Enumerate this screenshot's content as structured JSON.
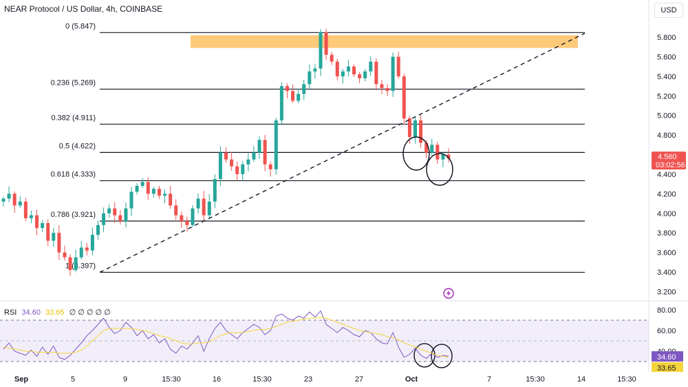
{
  "header": {
    "title": "NEAR Protocol / US Dollar, 4h, COINBASE",
    "currency": "USD"
  },
  "colors": {
    "up": "#26a69a",
    "down": "#ef5350",
    "rsi": "#7e57c2",
    "rsi_ma": "#f5d43b",
    "highlight_zone": "#ffb74d",
    "price_badge": "#ef5350"
  },
  "chart_data": [
    {
      "type": "candlestick",
      "title": "NEAR Protocol / US Dollar, 4h, COINBASE",
      "y_ticks": [
        "5.800",
        "5.600",
        "5.400",
        "5.200",
        "5.000",
        "4.800",
        "4.600",
        "4.400",
        "4.200",
        "4.000",
        "3.800",
        "3.600",
        "3.400",
        "3.200"
      ],
      "x_ticks": [
        "Sep",
        "5",
        "9",
        "15:30",
        "16",
        "15:30",
        "23",
        "27",
        "Oct",
        "7",
        "15:30",
        "14",
        "15:30"
      ],
      "ylim": [
        3.2,
        5.9
      ],
      "last_price": "4.560",
      "countdown": "03:02:56",
      "fib_levels": [
        {
          "label": "0 (5.847)",
          "value": 5.847
        },
        {
          "label": "0.236 (5.269)",
          "value": 5.269
        },
        {
          "label": "0.382 (4.911)",
          "value": 4.911
        },
        {
          "label": "0.5 (4.622)",
          "value": 4.622
        },
        {
          "label": "0.618 (4.333)",
          "value": 4.333
        },
        {
          "label": "0.786 (3.921)",
          "value": 3.921
        },
        {
          "label": "1 (3.397)",
          "value": 3.397
        }
      ],
      "resistance_zone": [
        5.69,
        5.82
      ],
      "trendline": {
        "from": 3.397,
        "to": 5.84
      },
      "price_path": [
        4.15,
        4.2,
        4.08,
        4.12,
        3.95,
        3.98,
        3.85,
        3.9,
        3.72,
        3.8,
        3.6,
        3.55,
        3.42,
        3.55,
        3.65,
        3.62,
        3.78,
        3.88,
        4.0,
        4.05,
        3.98,
        3.92,
        4.05,
        4.22,
        4.28,
        4.32,
        4.2,
        4.25,
        4.18,
        4.2,
        4.08,
        3.98,
        3.92,
        3.88,
        4.05,
        4.15,
        3.98,
        4.12,
        4.35,
        4.62,
        4.55,
        4.48,
        4.4,
        4.5,
        4.55,
        4.62,
        4.75,
        4.5,
        4.45,
        4.95,
        5.3,
        5.25,
        5.15,
        5.22,
        5.32,
        5.45,
        5.48,
        5.85,
        5.62,
        5.55,
        5.4,
        5.45,
        5.5,
        5.42,
        5.38,
        5.45,
        5.55,
        5.32,
        5.28,
        5.25,
        5.6,
        5.4,
        4.97,
        4.78,
        4.95,
        4.72,
        4.62,
        4.7,
        4.55,
        4.6,
        4.56
      ]
    },
    {
      "type": "line",
      "title": "RSI",
      "legend": [
        "34.60",
        "33.65",
        "∅ ∅ ∅ ∅ ∅"
      ],
      "series": [
        {
          "name": "RSI",
          "current": "34.60"
        },
        {
          "name": "MA",
          "current": "33.65"
        }
      ],
      "y_ticks": [
        "80.00",
        "60.00",
        "40.00"
      ],
      "ylim": [
        30,
        85
      ],
      "band": [
        30,
        70
      ],
      "rsi_values": [
        42,
        48,
        40,
        38,
        36,
        41,
        35,
        44,
        37,
        45,
        34,
        32,
        36,
        42,
        48,
        55,
        60,
        66,
        72,
        63,
        57,
        60,
        68,
        63,
        55,
        60,
        52,
        56,
        48,
        52,
        42,
        38,
        45,
        42,
        48,
        55,
        40,
        52,
        62,
        68,
        60,
        56,
        52,
        58,
        62,
        66,
        63,
        56,
        60,
        74,
        76,
        72,
        70,
        74,
        72,
        78,
        73,
        79,
        66,
        62,
        58,
        63,
        60,
        56,
        54,
        60,
        58,
        52,
        48,
        47,
        58,
        44,
        34,
        37,
        43,
        36,
        33,
        38,
        34,
        36,
        35
      ],
      "ma_values": [
        44,
        43,
        42,
        41,
        40,
        40,
        39,
        39,
        39,
        39,
        38,
        38,
        38,
        39,
        41,
        45,
        50,
        55,
        60,
        62,
        62,
        62,
        62,
        62,
        61,
        60,
        59,
        57,
        55,
        54,
        52,
        50,
        48,
        47,
        47,
        48,
        48,
        49,
        52,
        55,
        57,
        58,
        58,
        58,
        59,
        60,
        61,
        61,
        62,
        64,
        66,
        68,
        69,
        70,
        71,
        72,
        72,
        73,
        72,
        70,
        68,
        66,
        64,
        62,
        60,
        59,
        58,
        57,
        56,
        54,
        53,
        51,
        48,
        46,
        44,
        42,
        40,
        38,
        36,
        35,
        34
      ],
      "current_rsi": "34.60",
      "current_ma": "33.65"
    }
  ]
}
